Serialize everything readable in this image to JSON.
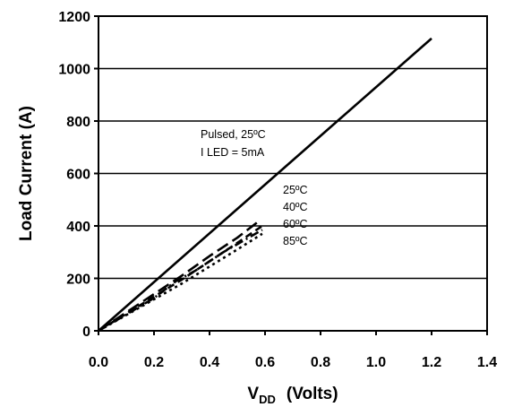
{
  "chart_data": {
    "type": "line",
    "xlabel_main": "V",
    "xlabel_sub": "DD",
    "xlabel_rest": "(Volts)",
    "ylabel": "Load Current (A)",
    "xlim": [
      0.0,
      1.4
    ],
    "ylim": [
      0,
      1200
    ],
    "x_ticks": [
      "0.0",
      "0.2",
      "0.4",
      "0.6",
      "0.8",
      "1.0",
      "1.2",
      "1.4"
    ],
    "y_ticks": [
      "0",
      "200",
      "400",
      "600",
      "800",
      "1000",
      "1200"
    ],
    "grid": "horizontal",
    "annotations": {
      "pulsed_line1": "Pulsed, 25ºC",
      "pulsed_line2": "I LED = 5mA",
      "temp_25": "25ºC",
      "temp_40": "40ºC",
      "temp_60": "60ºC",
      "temp_85": "85ºC"
    },
    "series": [
      {
        "name": "Pulsed, 25ºC",
        "style": "solid",
        "x": [
          0.0,
          1.2
        ],
        "y": [
          0,
          1115
        ]
      },
      {
        "name": "25ºC",
        "style": "long-dash",
        "x": [
          0.0,
          0.1,
          0.2,
          0.3,
          0.4,
          0.5,
          0.58
        ],
        "y": [
          0,
          70,
          140,
          210,
          285,
          355,
          420
        ]
      },
      {
        "name": "40ºC",
        "style": "dash",
        "x": [
          0.0,
          0.1,
          0.2,
          0.3,
          0.4,
          0.5,
          0.59
        ],
        "y": [
          0,
          65,
          130,
          195,
          265,
          335,
          400
        ]
      },
      {
        "name": "60ºC",
        "style": "dash-dot",
        "x": [
          0.0,
          0.1,
          0.2,
          0.28,
          0.35,
          0.45,
          0.59
        ],
        "y": [
          0,
          62,
          125,
          190,
          230,
          300,
          385
        ]
      },
      {
        "name": "85ºC",
        "style": "dot",
        "x": [
          0.0,
          0.1,
          0.2,
          0.3,
          0.4,
          0.5,
          0.59
        ],
        "y": [
          0,
          60,
          120,
          180,
          245,
          310,
          370
        ]
      }
    ]
  }
}
